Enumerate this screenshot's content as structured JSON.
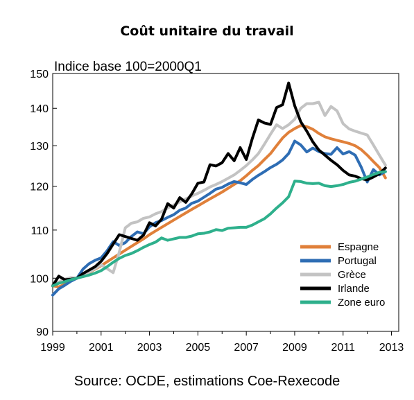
{
  "chart_data": {
    "type": "line",
    "title": "Coût unitaire du travail",
    "subtitle": "Indice base 100=2000Q1",
    "source": "Source: OCDE, estimations Coe-Rexecode",
    "y_scale": "log",
    "ylim": [
      90,
      150
    ],
    "xlim": [
      1999,
      2013.3
    ],
    "x_ticks": [
      1999,
      2001,
      2003,
      2005,
      2007,
      2009,
      2011,
      2013
    ],
    "x_tick_labels": [
      "1999",
      "2001",
      "2003",
      "2005",
      "2007",
      "2009",
      "2011",
      "2013"
    ],
    "y_ticks": [
      90,
      100,
      110,
      120,
      130,
      140,
      150
    ],
    "y_tick_labels": [
      "90",
      "100",
      "110",
      "120",
      "130",
      "140",
      "150"
    ],
    "grid": false,
    "legend_position": "bottom-right",
    "series": [
      {
        "name": "Espagne",
        "color": "#e0803a",
        "points": [
          [
            1999.0,
            98.5
          ],
          [
            1999.25,
            98.3
          ],
          [
            1999.5,
            98.8
          ],
          [
            1999.75,
            99.6
          ],
          [
            2000.0,
            100
          ],
          [
            2000.25,
            100.5
          ],
          [
            2000.5,
            101.1
          ],
          [
            2000.75,
            101.8
          ],
          [
            2001.0,
            102.5
          ],
          [
            2001.25,
            103.3
          ],
          [
            2001.5,
            104.1
          ],
          [
            2001.75,
            104.9
          ],
          [
            2002.0,
            105.7
          ],
          [
            2002.25,
            106.5
          ],
          [
            2002.5,
            107.3
          ],
          [
            2002.75,
            108.1
          ],
          [
            2003.0,
            109.0
          ],
          [
            2003.25,
            109.8
          ],
          [
            2003.5,
            110.6
          ],
          [
            2003.75,
            111.4
          ],
          [
            2004.0,
            112.2
          ],
          [
            2004.25,
            113.0
          ],
          [
            2004.5,
            113.8
          ],
          [
            2004.75,
            114.6
          ],
          [
            2005.0,
            115.4
          ],
          [
            2005.25,
            116.2
          ],
          [
            2005.5,
            117.0
          ],
          [
            2005.75,
            117.8
          ],
          [
            2006.0,
            118.6
          ],
          [
            2006.25,
            119.5
          ],
          [
            2006.5,
            120.4
          ],
          [
            2006.75,
            121.3
          ],
          [
            2007.0,
            122.5
          ],
          [
            2007.25,
            123.8
          ],
          [
            2007.5,
            125.0
          ],
          [
            2007.75,
            126.5
          ],
          [
            2008.0,
            128.0
          ],
          [
            2008.25,
            130.0
          ],
          [
            2008.5,
            132.0
          ],
          [
            2008.75,
            133.5
          ],
          [
            2009.0,
            134.5
          ],
          [
            2009.25,
            135.3
          ],
          [
            2009.5,
            135.0
          ],
          [
            2009.75,
            134.3
          ],
          [
            2010.0,
            133.2
          ],
          [
            2010.25,
            132.3
          ],
          [
            2010.5,
            131.8
          ],
          [
            2010.75,
            131.4
          ],
          [
            2011.0,
            131.0
          ],
          [
            2011.25,
            130.6
          ],
          [
            2011.5,
            130.0
          ],
          [
            2011.75,
            129.0
          ],
          [
            2012.0,
            127.6
          ],
          [
            2012.25,
            126.0
          ],
          [
            2012.5,
            124.5
          ],
          [
            2012.75,
            122.0
          ]
        ]
      },
      {
        "name": "Portugal",
        "color": "#2e6db4",
        "points": [
          [
            1999.0,
            96.7
          ],
          [
            1999.25,
            97.9
          ],
          [
            1999.5,
            98.6
          ],
          [
            1999.75,
            99.4
          ],
          [
            2000.0,
            100
          ],
          [
            2000.25,
            101.8
          ],
          [
            2000.5,
            102.9
          ],
          [
            2000.75,
            103.6
          ],
          [
            2001.0,
            104.1
          ],
          [
            2001.25,
            105.6
          ],
          [
            2001.5,
            107.5
          ],
          [
            2001.75,
            106.7
          ],
          [
            2002.0,
            107.3
          ],
          [
            2002.25,
            108.6
          ],
          [
            2002.5,
            109.6
          ],
          [
            2002.75,
            109.2
          ],
          [
            2003.0,
            110.7
          ],
          [
            2003.25,
            111.6
          ],
          [
            2003.5,
            112.1
          ],
          [
            2003.75,
            112.8
          ],
          [
            2004.0,
            113.4
          ],
          [
            2004.25,
            114.4
          ],
          [
            2004.5,
            114.9
          ],
          [
            2004.75,
            116.0
          ],
          [
            2005.0,
            116.5
          ],
          [
            2005.25,
            117.4
          ],
          [
            2005.5,
            118.3
          ],
          [
            2005.75,
            119.3
          ],
          [
            2006.0,
            119.7
          ],
          [
            2006.25,
            120.5
          ],
          [
            2006.5,
            121.1
          ],
          [
            2006.75,
            120.8
          ],
          [
            2007.0,
            120.4
          ],
          [
            2007.25,
            121.6
          ],
          [
            2007.5,
            122.6
          ],
          [
            2007.75,
            123.5
          ],
          [
            2008.0,
            124.5
          ],
          [
            2008.25,
            125.3
          ],
          [
            2008.5,
            126.4
          ],
          [
            2008.75,
            128.0
          ],
          [
            2009.0,
            131.2
          ],
          [
            2009.25,
            130.2
          ],
          [
            2009.5,
            128.4
          ],
          [
            2009.75,
            129.4
          ],
          [
            2010.0,
            128.5
          ],
          [
            2010.25,
            128.0
          ],
          [
            2010.5,
            127.8
          ],
          [
            2010.75,
            129.5
          ],
          [
            2011.0,
            127.9
          ],
          [
            2011.25,
            128.5
          ],
          [
            2011.5,
            127.6
          ],
          [
            2011.75,
            124.6
          ],
          [
            2012.0,
            121.0
          ],
          [
            2012.25,
            124.0
          ],
          [
            2012.5,
            122.7
          ],
          [
            2012.75,
            123.5
          ]
        ]
      },
      {
        "name": "Grèce",
        "color": "#c3c3c3",
        "points": [
          [
            1999.0,
            98.6
          ],
          [
            1999.25,
            99.2
          ],
          [
            1999.5,
            99.8
          ],
          [
            1999.75,
            100.1
          ],
          [
            2000.0,
            100
          ],
          [
            2000.25,
            100.5
          ],
          [
            2000.5,
            101.2
          ],
          [
            2000.75,
            101.9
          ],
          [
            2001.0,
            102.7
          ],
          [
            2001.25,
            101.9
          ],
          [
            2001.5,
            101.1
          ],
          [
            2001.75,
            105.3
          ],
          [
            2002.0,
            110.5
          ],
          [
            2002.25,
            111.5
          ],
          [
            2002.5,
            111.8
          ],
          [
            2002.75,
            112.6
          ],
          [
            2003.0,
            112.9
          ],
          [
            2003.25,
            113.6
          ],
          [
            2003.5,
            114.1
          ],
          [
            2003.75,
            114.9
          ],
          [
            2004.0,
            115.6
          ],
          [
            2004.25,
            116.3
          ],
          [
            2004.5,
            117.0
          ],
          [
            2004.75,
            117.7
          ],
          [
            2005.0,
            118.3
          ],
          [
            2005.25,
            119.0
          ],
          [
            2005.5,
            119.8
          ],
          [
            2005.75,
            120.4
          ],
          [
            2006.0,
            121.1
          ],
          [
            2006.25,
            121.9
          ],
          [
            2006.5,
            122.7
          ],
          [
            2006.75,
            123.8
          ],
          [
            2007.0,
            125.0
          ],
          [
            2007.25,
            126.4
          ],
          [
            2007.5,
            128.0
          ],
          [
            2007.75,
            130.4
          ],
          [
            2008.0,
            133.0
          ],
          [
            2008.25,
            135.5
          ],
          [
            2008.5,
            134.5
          ],
          [
            2008.75,
            135.5
          ],
          [
            2009.0,
            137.0
          ],
          [
            2009.25,
            140.0
          ],
          [
            2009.5,
            141.3
          ],
          [
            2009.75,
            141.3
          ],
          [
            2010.0,
            141.7
          ],
          [
            2010.25,
            138.0
          ],
          [
            2010.5,
            140.5
          ],
          [
            2010.75,
            139.3
          ],
          [
            2011.0,
            135.8
          ],
          [
            2011.25,
            134.4
          ],
          [
            2011.5,
            133.8
          ],
          [
            2011.75,
            133.3
          ],
          [
            2012.0,
            132.8
          ],
          [
            2012.25,
            130.2
          ],
          [
            2012.5,
            127.6
          ],
          [
            2012.75,
            125.1
          ]
        ]
      },
      {
        "name": "Irlande",
        "color": "#000000",
        "points": [
          [
            1999.0,
            98.5
          ],
          [
            1999.25,
            100.4
          ],
          [
            1999.5,
            99.7
          ],
          [
            1999.75,
            99.8
          ],
          [
            2000.0,
            100
          ],
          [
            2000.25,
            100.9
          ],
          [
            2000.5,
            101.6
          ],
          [
            2000.75,
            102.3
          ],
          [
            2001.0,
            103.4
          ],
          [
            2001.25,
            105.0
          ],
          [
            2001.5,
            107.0
          ],
          [
            2001.75,
            109.0
          ],
          [
            2002.0,
            108.6
          ],
          [
            2002.25,
            108.2
          ],
          [
            2002.5,
            107.8
          ],
          [
            2002.75,
            108.9
          ],
          [
            2003.0,
            111.6
          ],
          [
            2003.25,
            110.9
          ],
          [
            2003.5,
            112.4
          ],
          [
            2003.75,
            115.9
          ],
          [
            2004.0,
            114.9
          ],
          [
            2004.25,
            117.3
          ],
          [
            2004.5,
            116.2
          ],
          [
            2004.75,
            118.2
          ],
          [
            2005.0,
            120.7
          ],
          [
            2005.25,
            121.0
          ],
          [
            2005.5,
            125.2
          ],
          [
            2005.75,
            124.9
          ],
          [
            2006.0,
            125.7
          ],
          [
            2006.25,
            128.0
          ],
          [
            2006.5,
            126.2
          ],
          [
            2006.75,
            129.5
          ],
          [
            2007.0,
            126.5
          ],
          [
            2007.25,
            131.9
          ],
          [
            2007.5,
            136.8
          ],
          [
            2007.75,
            136.0
          ],
          [
            2008.0,
            135.6
          ],
          [
            2008.25,
            140.2
          ],
          [
            2008.5,
            141.0
          ],
          [
            2008.75,
            147.2
          ],
          [
            2009.0,
            140.7
          ],
          [
            2009.25,
            136.3
          ],
          [
            2009.5,
            133.8
          ],
          [
            2009.75,
            131.0
          ],
          [
            2010.0,
            128.9
          ],
          [
            2010.25,
            127.6
          ],
          [
            2010.5,
            126.3
          ],
          [
            2010.75,
            125.2
          ],
          [
            2011.0,
            123.8
          ],
          [
            2011.25,
            122.7
          ],
          [
            2011.5,
            122.4
          ],
          [
            2011.75,
            121.8
          ],
          [
            2012.0,
            121.5
          ],
          [
            2012.25,
            122.2
          ],
          [
            2012.5,
            123.0
          ],
          [
            2012.75,
            124.4
          ]
        ]
      },
      {
        "name": "Zone euro",
        "color": "#2eb08c",
        "points": [
          [
            1999.0,
            98.5
          ],
          [
            1999.25,
            99.0
          ],
          [
            1999.5,
            99.3
          ],
          [
            1999.75,
            99.7
          ],
          [
            2000.0,
            100
          ],
          [
            2000.25,
            100.3
          ],
          [
            2000.5,
            100.6
          ],
          [
            2000.75,
            101.0
          ],
          [
            2001.0,
            101.5
          ],
          [
            2001.25,
            102.3
          ],
          [
            2001.5,
            103.2
          ],
          [
            2001.75,
            104.0
          ],
          [
            2002.0,
            104.6
          ],
          [
            2002.25,
            105.0
          ],
          [
            2002.5,
            105.6
          ],
          [
            2002.75,
            106.3
          ],
          [
            2003.0,
            106.9
          ],
          [
            2003.25,
            107.4
          ],
          [
            2003.5,
            108.3
          ],
          [
            2003.75,
            107.8
          ],
          [
            2004.0,
            108.1
          ],
          [
            2004.25,
            108.4
          ],
          [
            2004.5,
            108.4
          ],
          [
            2004.75,
            108.7
          ],
          [
            2005.0,
            109.2
          ],
          [
            2005.25,
            109.3
          ],
          [
            2005.5,
            109.6
          ],
          [
            2005.75,
            110.1
          ],
          [
            2006.0,
            109.9
          ],
          [
            2006.25,
            110.4
          ],
          [
            2006.5,
            110.5
          ],
          [
            2006.75,
            110.6
          ],
          [
            2007.0,
            110.6
          ],
          [
            2007.25,
            111.1
          ],
          [
            2007.5,
            111.8
          ],
          [
            2007.75,
            112.5
          ],
          [
            2008.0,
            113.6
          ],
          [
            2008.25,
            114.9
          ],
          [
            2008.5,
            116.1
          ],
          [
            2008.75,
            117.5
          ],
          [
            2009.0,
            121.2
          ],
          [
            2009.25,
            121.1
          ],
          [
            2009.5,
            120.7
          ],
          [
            2009.75,
            120.6
          ],
          [
            2010.0,
            120.7
          ],
          [
            2010.25,
            120.1
          ],
          [
            2010.5,
            119.9
          ],
          [
            2010.75,
            120.1
          ],
          [
            2011.0,
            120.4
          ],
          [
            2011.25,
            120.9
          ],
          [
            2011.5,
            121.2
          ],
          [
            2011.75,
            121.7
          ],
          [
            2012.0,
            122.2
          ],
          [
            2012.25,
            122.8
          ],
          [
            2012.5,
            123.3
          ],
          [
            2012.75,
            123.5
          ]
        ]
      }
    ]
  }
}
